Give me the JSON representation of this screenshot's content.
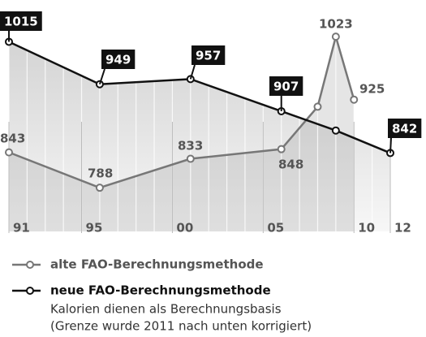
{
  "chart_data": {
    "type": "line",
    "x": [
      1991,
      1996,
      2001,
      2006,
      2008,
      2009,
      2010,
      2012
    ],
    "series": [
      {
        "name": "alte FAO-Berechnungsmethode",
        "color": "#777777",
        "values": [
          843,
          788,
          833,
          848,
          914,
          1023,
          925,
          null
        ],
        "value_labels": [
          "843",
          "788",
          "833",
          "848",
          null,
          "1023",
          "925",
          null
        ]
      },
      {
        "name": "neue FAO-Berechnungsmethode",
        "color": "#111111",
        "values": [
          1015,
          949,
          957,
          907,
          null,
          877,
          null,
          842
        ],
        "value_labels": [
          "1015",
          "949",
          "957",
          "907",
          null,
          null,
          null,
          "842"
        ]
      }
    ],
    "xlim": [
      1991,
      2012
    ],
    "xticks": [
      {
        "value": 1991,
        "label": "91"
      },
      {
        "value": 1995,
        "label": "95"
      },
      {
        "value": 2000,
        "label": "00"
      },
      {
        "value": 2005,
        "label": "05"
      },
      {
        "value": 2010,
        "label": "10"
      },
      {
        "value": 2012,
        "label": "12"
      }
    ],
    "ylim": [
      720,
      1080
    ],
    "grid": true,
    "notes": [
      "Kalorien dienen als Berechnungsbasis",
      "(Grenze wurde 2011 nach unten korrigiert)"
    ]
  }
}
